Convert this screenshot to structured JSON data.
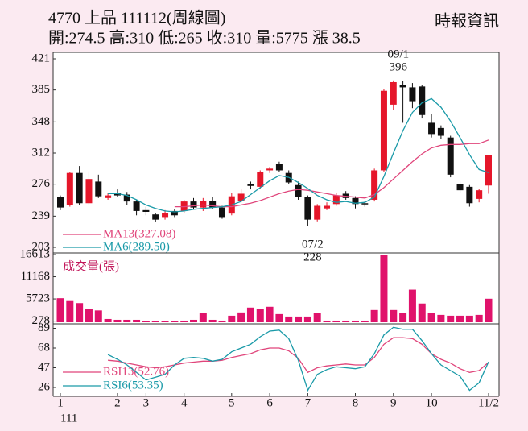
{
  "chart_data": [
    {
      "type": "candlestick",
      "title": "4770 上品 111112(周線圖)",
      "subtitle": "開:274.5 高:310 低:265 收:310 量:5775 漲 38.5",
      "source": "時報資訊",
      "categories": [
        "1",
        null,
        null,
        null,
        null,
        null,
        "2",
        null,
        null,
        "3",
        null,
        null,
        null,
        "4",
        null,
        null,
        null,
        null,
        "5",
        null,
        null,
        null,
        "6",
        null,
        null,
        null,
        "7",
        null,
        null,
        null,
        null,
        "8",
        null,
        null,
        null,
        "9",
        null,
        null,
        null,
        "10",
        null,
        null,
        null,
        null,
        null,
        "11/2"
      ],
      "year": "111",
      "open": [
        261,
        252,
        289,
        254,
        279,
        260,
        266,
        264,
        256,
        246,
        241,
        238,
        245,
        245,
        256,
        249,
        257,
        249,
        242,
        257,
        276,
        273,
        292,
        299,
        289,
        275,
        261,
        235,
        248,
        253,
        265,
        260,
        254,
        258,
        292,
        368,
        391,
        388,
        389,
        347,
        341,
        330,
        276,
        273,
        259,
        274.5
      ],
      "high": [
        263,
        290,
        297,
        291,
        287,
        266,
        270,
        267,
        258,
        250,
        243,
        246,
        247,
        258,
        260,
        260,
        261,
        251,
        266,
        270,
        279,
        292,
        296,
        302,
        292,
        279,
        263,
        253,
        255,
        266,
        268,
        262,
        256,
        294,
        386,
        396,
        395,
        393,
        391,
        357,
        344,
        332,
        279,
        275,
        271,
        310
      ],
      "low": [
        246,
        250,
        252,
        252,
        260,
        258,
        261,
        252,
        240,
        240,
        232,
        235,
        238,
        243,
        247,
        245,
        247,
        236,
        240,
        255,
        270,
        271,
        289,
        290,
        276,
        258,
        228,
        233,
        246,
        251,
        258,
        248,
        250,
        256,
        290,
        362,
        347,
        364,
        352,
        330,
        328,
        284,
        266,
        250,
        255,
        265
      ],
      "close": [
        249,
        289,
        254,
        282,
        262,
        263,
        263,
        256,
        245,
        244,
        235,
        243,
        240,
        256,
        249,
        257,
        249,
        238,
        262,
        265,
        274,
        290,
        294,
        292,
        278,
        261,
        235,
        251,
        251,
        263,
        260,
        253,
        253,
        292,
        384,
        394,
        388,
        372,
        356,
        334,
        332,
        287,
        269,
        254,
        269,
        310
      ],
      "up_color": "#e5162a",
      "down_color": "#111111",
      "series": [
        {
          "name": "MA13(327.08)",
          "color": "#e0457b",
          "values": [
            null,
            null,
            null,
            null,
            null,
            null,
            null,
            null,
            null,
            null,
            null,
            null,
            250,
            250,
            251,
            252,
            251,
            250,
            250,
            252,
            254,
            257,
            261,
            265,
            268,
            270,
            269,
            267,
            265,
            263,
            262,
            261,
            260,
            264,
            272,
            282,
            292,
            302,
            311,
            318,
            321,
            322,
            322,
            323,
            323,
            327.08
          ]
        },
        {
          "name": "MA6(289.50)",
          "color": "#1a9aa8",
          "values": [
            null,
            null,
            null,
            null,
            null,
            265,
            265,
            263,
            258,
            252,
            248,
            245,
            244,
            245,
            247,
            248,
            249,
            250,
            252,
            256,
            264,
            272,
            280,
            286,
            284,
            278,
            271,
            263,
            258,
            255,
            256,
            254,
            255,
            261,
            285,
            312,
            338,
            359,
            370,
            375,
            365,
            349,
            330,
            310,
            293,
            289.5
          ]
        }
      ],
      "annotations": [
        {
          "date": "09/1",
          "value": 396
        },
        {
          "date": "07/2",
          "value": 228
        }
      ],
      "ylim": [
        203,
        421
      ],
      "yticks": [
        421,
        385,
        348,
        312,
        276,
        239,
        203
      ]
    },
    {
      "type": "bar",
      "title": "成交量(張)",
      "color": "#e0126b",
      "values": [
        5900,
        5200,
        4700,
        3300,
        2900,
        800,
        600,
        600,
        600,
        200,
        250,
        250,
        250,
        400,
        600,
        2200,
        600,
        400,
        1600,
        2400,
        3600,
        3200,
        3800,
        2000,
        1400,
        1400,
        1400,
        2200,
        400,
        400,
        400,
        400,
        400,
        3000,
        16613,
        3000,
        2200,
        8000,
        4600,
        2200,
        1800,
        1600,
        1600,
        1600,
        1800,
        5775
      ],
      "ylim": [
        0,
        16613
      ],
      "yticks": [
        16613,
        11168,
        5723,
        278
      ]
    },
    {
      "type": "line",
      "series": [
        {
          "name": "RSI13(52.76)",
          "color": "#e0457b",
          "values": [
            null,
            null,
            null,
            null,
            null,
            55,
            54,
            52,
            50,
            48,
            47,
            48,
            50,
            52,
            53,
            54,
            54,
            55,
            58,
            60,
            62,
            66,
            68,
            68,
            65,
            57,
            42,
            47,
            49,
            50,
            51,
            50,
            50,
            58,
            72,
            79,
            79,
            78,
            72,
            62,
            56,
            52,
            46,
            42,
            44,
            52.76
          ]
        },
        {
          "name": "RSI6(53.35)",
          "color": "#1a9aa8",
          "values": [
            null,
            null,
            null,
            null,
            null,
            61,
            56,
            50,
            42,
            34,
            37,
            40,
            50,
            57,
            58,
            57,
            54,
            56,
            64,
            68,
            72,
            80,
            86,
            87,
            78,
            55,
            23,
            40,
            45,
            48,
            47,
            46,
            48,
            62,
            82,
            90,
            88,
            88,
            76,
            62,
            50,
            44,
            38,
            23,
            31,
            53.35
          ]
        }
      ],
      "ylim": [
        20,
        92
      ],
      "yticks": [
        89,
        68,
        47,
        26
      ]
    }
  ]
}
